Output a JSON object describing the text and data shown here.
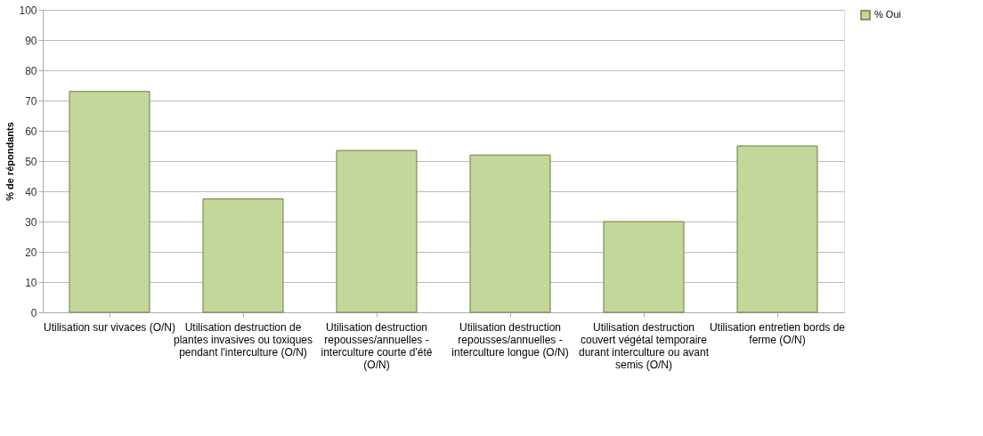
{
  "chart_data": {
    "type": "bar",
    "ylabel": "% de répondants",
    "categories": [
      "Utilisation sur vivaces (O/N)",
      "Utilisation destruction de plantes invasives ou toxiques pendant l'interculture (O/N)",
      "Utilisation destruction repousses/annuelles - interculture courte d'été (O/N)",
      "Utilisation destruction repousses/annuelles - interculture longue (O/N)",
      "Utilisation destruction couvert végétal temporaire durant interculture ou avant semis (O/N)",
      "Utilisation entretien bords de ferme (O/N)"
    ],
    "series": [
      {
        "name": "% Oui",
        "color": "#c4d79b",
        "values": [
          73,
          37.5,
          53.5,
          52,
          30,
          55
        ]
      }
    ],
    "ylim": [
      0,
      100
    ],
    "yticks": [
      0,
      10,
      20,
      30,
      40,
      50,
      60,
      70,
      80,
      90,
      100
    ],
    "grid": "y",
    "legend": "right"
  }
}
